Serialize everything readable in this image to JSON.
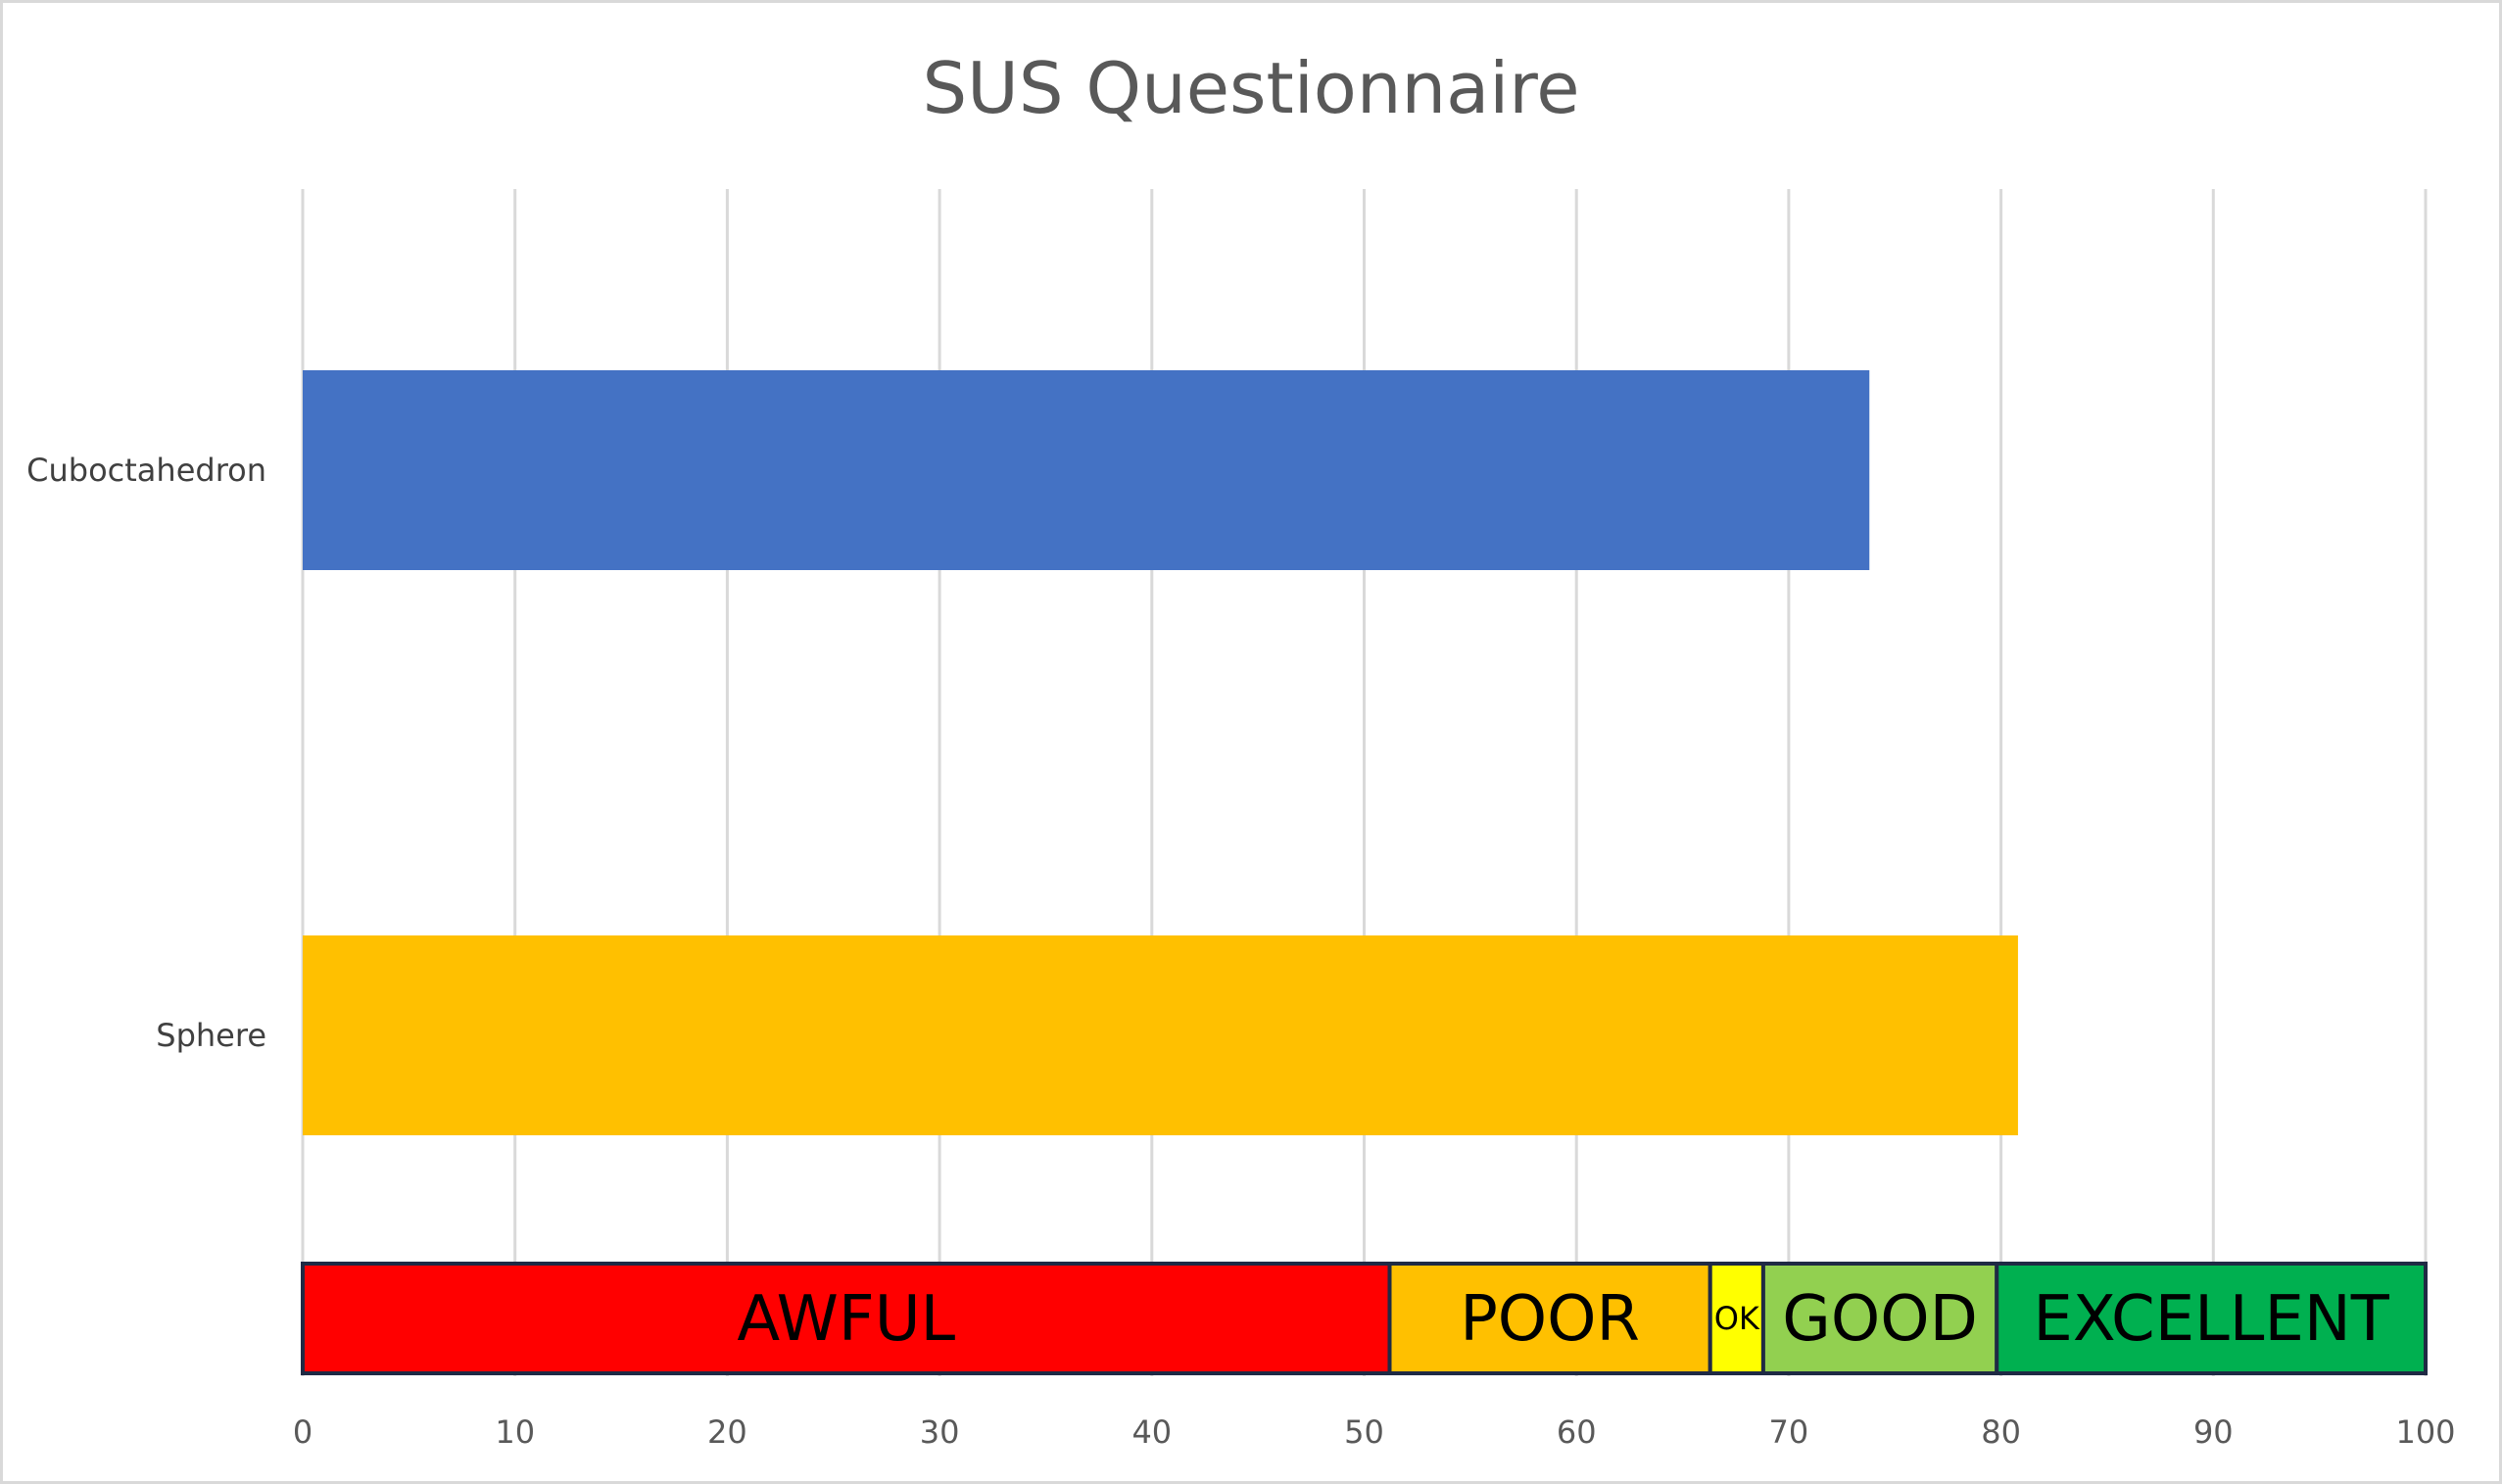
{
  "chart_data": {
    "type": "bar",
    "orientation": "horizontal",
    "title": "SUS Questionnaire",
    "xlabel": "",
    "ylabel": "",
    "xlim": [
      0,
      100
    ],
    "x_ticks": [
      "0",
      "10",
      "20",
      "30",
      "40",
      "50",
      "60",
      "70",
      "80",
      "90",
      "100"
    ],
    "grid": true,
    "categories": [
      "Cuboctahedron",
      "Sphere"
    ],
    "values": [
      73.8,
      80.8
    ],
    "bar_colors": [
      "#4472c4",
      "#ffc000"
    ],
    "bands": [
      {
        "label": "AWFUL",
        "start": 0,
        "end": 51.2,
        "color": "#ff0000"
      },
      {
        "label": "POOR",
        "start": 51.2,
        "end": 66.3,
        "color": "#ffc000"
      },
      {
        "label": "OK",
        "start": 66.3,
        "end": 68.8,
        "color": "#ffff00"
      },
      {
        "label": "GOOD",
        "start": 68.8,
        "end": 79.8,
        "color": "#92d050"
      },
      {
        "label": "EXCELLENT",
        "start": 79.8,
        "end": 100,
        "color": "#00b050"
      }
    ]
  }
}
